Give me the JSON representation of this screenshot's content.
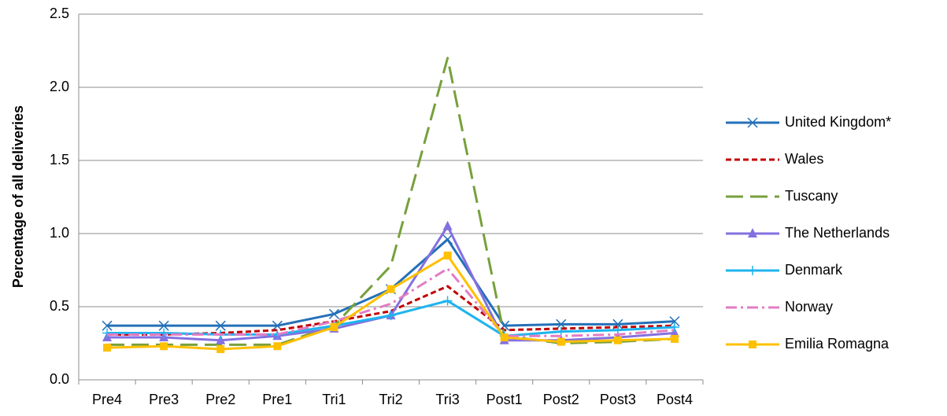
{
  "chart_data": {
    "type": "line",
    "y_label": "Percentage of all deliveries",
    "categories": [
      "Pre4",
      "Pre3",
      "Pre2",
      "Pre1",
      "Tri1",
      "Tri2",
      "Tri3",
      "Post1",
      "Post2",
      "Post3",
      "Post4"
    ],
    "ylim": [
      0,
      2.5
    ],
    "yticks": [
      {
        "value": 0,
        "label": "0.0"
      },
      0.5,
      {
        "value": 1,
        "label": "1.0"
      },
      1.5,
      {
        "value": 2,
        "label": "2.0"
      },
      2.5
    ],
    "grid": true,
    "legend": "right",
    "series": [
      {
        "name": "United Kingdom*",
        "color": "#2470b8",
        "dash": "solid",
        "marker": "x",
        "values": [
          0.37,
          0.37,
          0.37,
          0.37,
          0.45,
          0.62,
          0.96,
          0.37,
          0.38,
          0.38,
          0.4
        ]
      },
      {
        "name": "Wales",
        "color": "#c00000",
        "dash": "dotted",
        "marker": "none",
        "values": [
          0.31,
          0.31,
          0.32,
          0.34,
          0.4,
          0.47,
          0.64,
          0.34,
          0.35,
          0.36,
          0.37
        ]
      },
      {
        "name": "Tuscany",
        "color": "#77a03c",
        "dash": "longdash",
        "marker": "none",
        "values": [
          0.24,
          0.24,
          0.24,
          0.24,
          0.37,
          0.78,
          2.2,
          0.3,
          0.25,
          0.26,
          0.28
        ]
      },
      {
        "name": "The Netherlands",
        "color": "#8470e0",
        "dash": "solid",
        "marker": "triangle",
        "values": [
          0.29,
          0.29,
          0.27,
          0.3,
          0.35,
          0.44,
          1.05,
          0.27,
          0.27,
          0.29,
          0.32
        ]
      },
      {
        "name": "Denmark",
        "color": "#1eb4ee",
        "dash": "solid",
        "marker": "plus",
        "values": [
          0.32,
          0.32,
          0.31,
          0.31,
          0.37,
          0.44,
          0.54,
          0.3,
          0.33,
          0.34,
          0.36
        ]
      },
      {
        "name": "Norway",
        "color": "#e27cc4",
        "dash": "dashdot",
        "marker": "none",
        "values": [
          0.31,
          0.31,
          0.31,
          0.31,
          0.4,
          0.52,
          0.76,
          0.3,
          0.3,
          0.31,
          0.34
        ]
      },
      {
        "name": "Emilia Romagna",
        "color": "#ffc000",
        "dash": "solid",
        "marker": "square",
        "values": [
          0.22,
          0.23,
          0.21,
          0.23,
          0.36,
          0.62,
          0.85,
          0.29,
          0.26,
          0.27,
          0.28
        ]
      }
    ]
  }
}
